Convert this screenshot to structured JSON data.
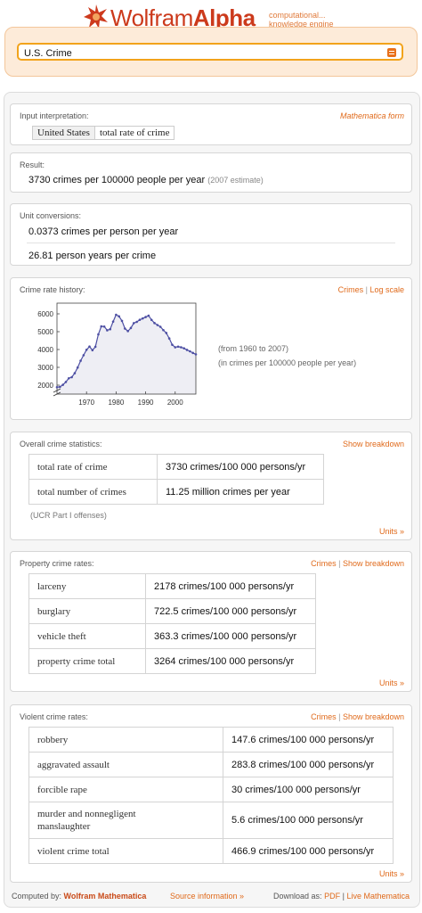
{
  "brand": {
    "name_a": "Wolfram",
    "name_b": "Alpha",
    "tagline_1": "computational...",
    "tagline_2": "knowledge engine"
  },
  "search": {
    "value": "U.S. Crime",
    "go_icon": "equals-icon"
  },
  "pods": {
    "input": {
      "title": "Input interpretation:",
      "link": "Mathematica form",
      "term_a": "United States",
      "term_b": "total rate of crime"
    },
    "result": {
      "title": "Result:",
      "value": "3730 crimes per 100000 people per year",
      "note": "(2007 estimate)"
    },
    "conversions": {
      "title": "Unit conversions:",
      "row1": "0.0373 crimes per person per year",
      "row2": "26.81 person years per crime"
    },
    "history": {
      "title": "Crime rate history:",
      "link_a": "Crimes",
      "sep": "|",
      "link_b": "Log scale",
      "note1": "(from 1960 to 2007)",
      "note2": "(in crimes per 100000 people per year)"
    },
    "overall": {
      "title": "Overall crime statistics:",
      "link": "Show breakdown",
      "rows": [
        {
          "k": "total rate of crime",
          "v": "3730 crimes/100 000 persons/yr"
        },
        {
          "k": "total number of crimes",
          "v": "11.25 million crimes per year"
        }
      ],
      "footnote": "(UCR Part I offenses)",
      "units": "Units »"
    },
    "property": {
      "title": "Property crime rates:",
      "link_a": "Crimes",
      "sep": "|",
      "link_b": "Show breakdown",
      "rows": [
        {
          "k": "larceny",
          "v": "2178 crimes/100 000 persons/yr"
        },
        {
          "k": "burglary",
          "v": "722.5 crimes/100 000 persons/yr"
        },
        {
          "k": "vehicle theft",
          "v": "363.3 crimes/100 000 persons/yr"
        },
        {
          "k": "property crime total",
          "v": "3264 crimes/100 000 persons/yr"
        }
      ],
      "units": "Units »"
    },
    "violent": {
      "title": "Violent crime rates:",
      "link_a": "Crimes",
      "sep": "|",
      "link_b": "Show breakdown",
      "rows": [
        {
          "k": "robbery",
          "v": "147.6 crimes/100 000 persons/yr"
        },
        {
          "k": "aggravated assault",
          "v": "283.8 crimes/100 000 persons/yr"
        },
        {
          "k": "forcible rape",
          "v": "30 crimes/100 000 persons/yr"
        },
        {
          "k": "murder and nonnegligent",
          "k2": "manslaughter",
          "v": "5.6 crimes/100 000 persons/yr"
        },
        {
          "k": "violent crime total",
          "v": "466.9 crimes/100 000 persons/yr"
        }
      ],
      "units": "Units »"
    }
  },
  "footer": {
    "computed_by": "Computed by:",
    "engine": "Wolfram Mathematica",
    "source": "Source information »",
    "download": "Download as:",
    "pdf": "PDF",
    "sep": "|",
    "live": "Live Mathematica"
  },
  "chart_data": {
    "type": "line",
    "x": [
      1960,
      1961,
      1962,
      1963,
      1964,
      1965,
      1966,
      1967,
      1968,
      1969,
      1970,
      1971,
      1972,
      1973,
      1974,
      1975,
      1976,
      1977,
      1978,
      1979,
      1980,
      1981,
      1982,
      1983,
      1984,
      1985,
      1986,
      1987,
      1988,
      1989,
      1990,
      1991,
      1992,
      1993,
      1994,
      1995,
      1996,
      1997,
      1998,
      1999,
      2000,
      2001,
      2002,
      2003,
      2004,
      2005,
      2006,
      2007
    ],
    "values": [
      1887,
      1906,
      2020,
      2180,
      2388,
      2449,
      2670,
      2990,
      3370,
      3680,
      3985,
      4165,
      3961,
      4154,
      4850,
      5299,
      5287,
      5078,
      5140,
      5565,
      5950,
      5858,
      5604,
      5175,
      5031,
      5207,
      5480,
      5550,
      5664,
      5741,
      5820,
      5898,
      5660,
      5484,
      5374,
      5275,
      5087,
      4927,
      4620,
      4267,
      4125,
      4163,
      4125,
      4067,
      3977,
      3900,
      3808,
      3730
    ],
    "xlim": [
      1960,
      2007
    ],
    "ylim": [
      1500,
      6600
    ],
    "xticks": [
      1970,
      1980,
      1990,
      2000
    ],
    "yticks": [
      2000,
      3000,
      4000,
      5000,
      6000
    ],
    "line_color": "#4d4fa3",
    "fill_color": "#eeeef4",
    "grid": false
  }
}
